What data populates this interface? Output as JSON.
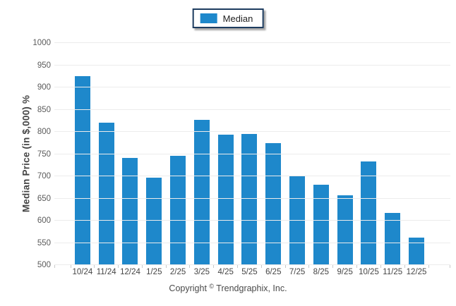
{
  "legend": {
    "label": "Median",
    "color": "#1e88cb"
  },
  "footer": {
    "copyright_prefix": "Copyright",
    "copyright_symbol": "©",
    "copyright_suffix": "Trendgraphix, Inc."
  },
  "chart_data": {
    "type": "bar",
    "title": "",
    "series_name": "Median",
    "categories": [
      "10/24",
      "11/24",
      "12/24",
      "1/25",
      "2/25",
      "3/25",
      "4/25",
      "5/25",
      "6/25",
      "7/25",
      "8/25",
      "9/25",
      "10/25",
      "11/25",
      "12/25"
    ],
    "values": [
      925,
      820,
      741,
      697,
      746,
      827,
      794,
      795,
      774,
      701,
      681,
      658,
      734,
      618,
      562
    ],
    "xlabel": "",
    "ylabel": "Median Price (in $,000) %",
    "ylim": [
      500,
      1000
    ],
    "yticks": [
      500,
      550,
      600,
      650,
      700,
      750,
      800,
      850,
      900,
      950,
      1000
    ],
    "grid": true,
    "legend_position": "top-center",
    "bar_color": "#1e88cb"
  }
}
